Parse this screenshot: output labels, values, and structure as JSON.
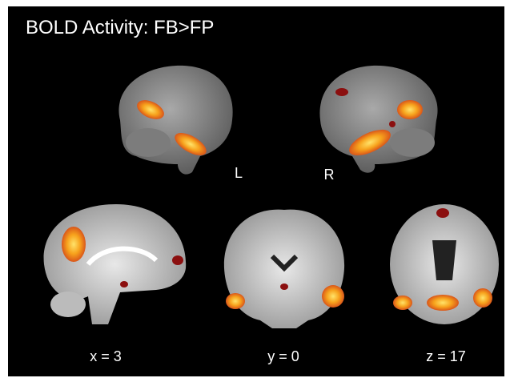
{
  "title": "BOLD Activity: FB>FP",
  "surface_views": [
    {
      "label": "L"
    },
    {
      "label": "R"
    }
  ],
  "slices": [
    {
      "label": "x = 3"
    },
    {
      "label": "y = 0"
    },
    {
      "label": "z = 17"
    }
  ]
}
